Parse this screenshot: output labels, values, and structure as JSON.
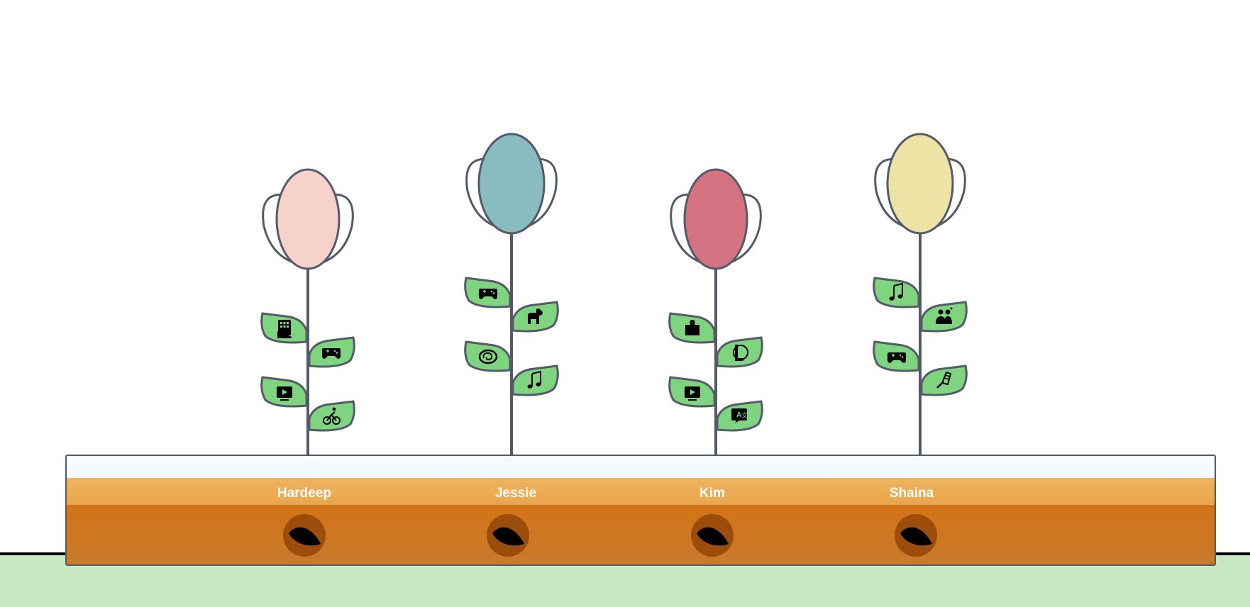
{
  "colors": {
    "stem": "#555a6a",
    "leaf": "#7ed47f",
    "background": "#ffffff",
    "ground": "#c6e9c2",
    "rim": "#f4fafe",
    "topsoil": "#efb35f",
    "soil": "#d37317",
    "seed": "#9c4d0b"
  },
  "plants": [
    {
      "name": "Hardeep",
      "bloom_color": "#f6d2cb",
      "leaves": [
        "calculator-icon",
        "gamepad-icon",
        "tv-play-icon",
        "cyclist-icon"
      ]
    },
    {
      "name": "Jessie",
      "bloom_color": "#88bcbf",
      "leaves": [
        "gamepad-icon",
        "dog-icon",
        "brain-icon",
        "music-note-icon"
      ]
    },
    {
      "name": "Kim",
      "bloom_color": "#d57382",
      "leaves": [
        "puzzle-piece-icon",
        "league-logo-icon",
        "tv-play-icon",
        "translate-icon"
      ]
    },
    {
      "name": "Shaina",
      "bloom_color": "#ede3a4",
      "leaves": [
        "music-note-icon",
        "people-icon",
        "gamepad-icon",
        "badminton-icon"
      ]
    }
  ]
}
